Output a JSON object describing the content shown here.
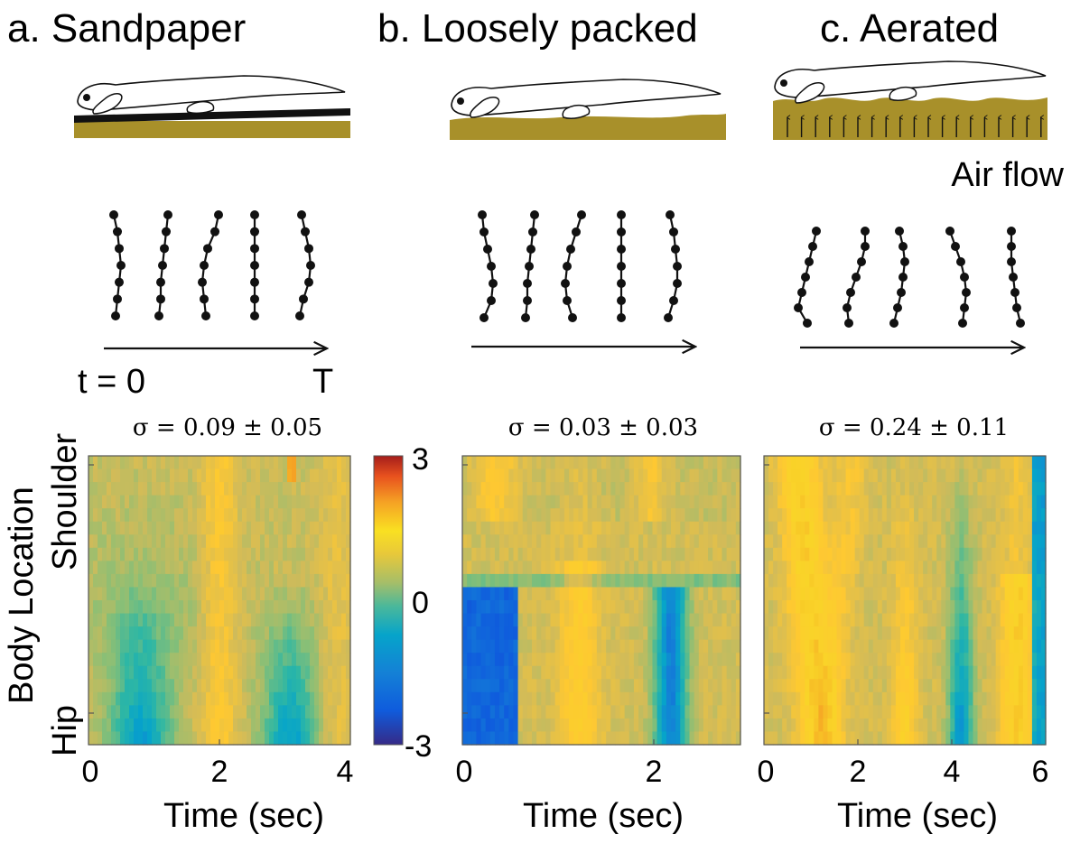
{
  "panels": [
    {
      "id": "a",
      "title": "a. Sandpaper",
      "sigma_label": "σ = 0.09 ± 0.05",
      "x_ticks": [
        "0",
        "2",
        "4"
      ],
      "x_label": "Time (sec)",
      "time_axis": {
        "start_label": "t = 0",
        "end_label": "T"
      }
    },
    {
      "id": "b",
      "title": "b. Loosely packed",
      "sigma_label": "σ = 0.03 ± 0.03",
      "x_ticks": [
        "0",
        "2"
      ],
      "x_label": "Time (sec)"
    },
    {
      "id": "c",
      "title": "c. Aerated",
      "sigma_label": "σ = 0.24 ± 0.11",
      "x_ticks": [
        "0",
        "2",
        "4",
        "6"
      ],
      "x_label": "Time (sec)",
      "air_flow_label": "Air flow"
    }
  ],
  "y_axis": {
    "title": "Body Location",
    "top_label": "Shoulder",
    "bottom_label": "Hip"
  },
  "colorbar": {
    "max_label": "3",
    "mid_label": "0",
    "min_label": "-3"
  },
  "colors": {
    "substrate": "#a8902a",
    "substrate_dark": "#111111",
    "ink": "#231f20",
    "colormap": [
      "#352a87",
      "#0f5cdd",
      "#1481d6",
      "#06a4ca",
      "#2eb7a4",
      "#87bf77",
      "#d1bb59",
      "#fec832",
      "#f9d428",
      "#f5a224",
      "#e8511e",
      "#a51d1b"
    ]
  }
}
